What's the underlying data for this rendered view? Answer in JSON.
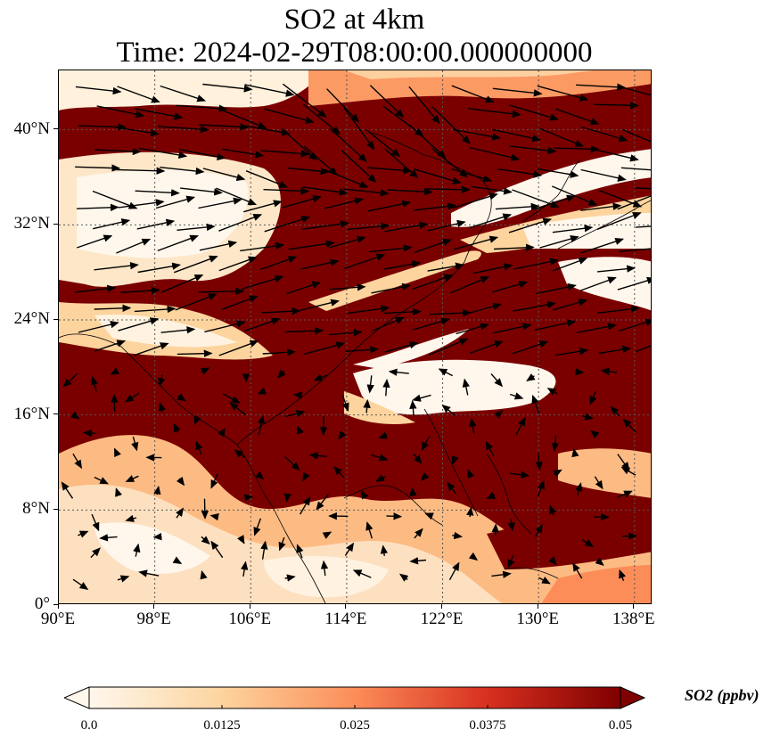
{
  "title": {
    "line1": "SO2 at 4km",
    "line2": "Time: 2024-02-29T08:00:00.000000000"
  },
  "map": {
    "lat_labels": [
      "40°N",
      "32°N",
      "24°N",
      "16°N",
      "8°N",
      "0°"
    ],
    "lat_values": [
      40,
      32,
      24,
      16,
      8,
      0
    ],
    "lon_labels": [
      "90°E",
      "98°E",
      "106°E",
      "114°E",
      "122°E",
      "130°E",
      "138°E"
    ],
    "lon_values": [
      90,
      98,
      106,
      114,
      122,
      130,
      138
    ],
    "lon_range": [
      90,
      139.5
    ],
    "lat_range": [
      0,
      45
    ],
    "gridlines": true
  },
  "colorbar": {
    "title": "SO2 (ppbv)",
    "tick_labels": [
      "0.0",
      "0.0125",
      "0.025",
      "0.0375",
      "0.05"
    ],
    "tick_values": [
      0,
      0.0125,
      0.025,
      0.0375,
      0.05
    ],
    "colormap": "OrRd",
    "colors": [
      "#fff7ec",
      "#fdd49e",
      "#fc8d59",
      "#d7301f",
      "#7f0000"
    ],
    "extend": "both"
  },
  "colors": {
    "low": "#fff7ec",
    "high": "#7a0000",
    "arrows": "#000000"
  }
}
